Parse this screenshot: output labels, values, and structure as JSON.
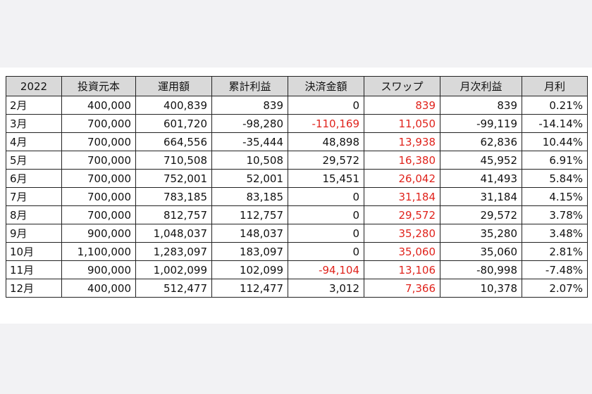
{
  "table": {
    "headers": [
      "2022",
      "投資元本",
      "運用額",
      "累計利益",
      "決済金額",
      "スワップ",
      "月次利益",
      "月利"
    ],
    "rows": [
      {
        "month": "2月",
        "principal": "400,000",
        "operating": "400,839",
        "cumulative": "839",
        "settlement": "0",
        "swap": "839",
        "monthly_profit": "839",
        "monthly_rate": "0.21%",
        "settlement_negative": false
      },
      {
        "month": "3月",
        "principal": "700,000",
        "operating": "601,720",
        "cumulative": "-98,280",
        "settlement": "-110,169",
        "swap": "11,050",
        "monthly_profit": "-99,119",
        "monthly_rate": "-14.14%",
        "settlement_negative": true
      },
      {
        "month": "4月",
        "principal": "700,000",
        "operating": "664,556",
        "cumulative": "-35,444",
        "settlement": "48,898",
        "swap": "13,938",
        "monthly_profit": "62,836",
        "monthly_rate": "10.44%",
        "settlement_negative": false
      },
      {
        "month": "5月",
        "principal": "700,000",
        "operating": "710,508",
        "cumulative": "10,508",
        "settlement": "29,572",
        "swap": "16,380",
        "monthly_profit": "45,952",
        "monthly_rate": "6.91%",
        "settlement_negative": false
      },
      {
        "month": "6月",
        "principal": "700,000",
        "operating": "752,001",
        "cumulative": "52,001",
        "settlement": "15,451",
        "swap": "26,042",
        "monthly_profit": "41,493",
        "monthly_rate": "5.84%",
        "settlement_negative": false
      },
      {
        "month": "7月",
        "principal": "700,000",
        "operating": "783,185",
        "cumulative": "83,185",
        "settlement": "0",
        "swap": "31,184",
        "monthly_profit": "31,184",
        "monthly_rate": "4.15%",
        "settlement_negative": false
      },
      {
        "month": "8月",
        "principal": "700,000",
        "operating": "812,757",
        "cumulative": "112,757",
        "settlement": "0",
        "swap": "29,572",
        "monthly_profit": "29,572",
        "monthly_rate": "3.78%",
        "settlement_negative": false
      },
      {
        "month": "9月",
        "principal": "900,000",
        "operating": "1,048,037",
        "cumulative": "148,037",
        "settlement": "0",
        "swap": "35,280",
        "monthly_profit": "35,280",
        "monthly_rate": "3.48%",
        "settlement_negative": false
      },
      {
        "month": "10月",
        "principal": "1,100,000",
        "operating": "1,283,097",
        "cumulative": "183,097",
        "settlement": "0",
        "swap": "35,060",
        "monthly_profit": "35,060",
        "monthly_rate": "2.81%",
        "settlement_negative": false
      },
      {
        "month": "11月",
        "principal": "900,000",
        "operating": "1,002,099",
        "cumulative": "102,099",
        "settlement": "-94,104",
        "swap": "13,106",
        "monthly_profit": "-80,998",
        "monthly_rate": "-7.48%",
        "settlement_negative": true
      },
      {
        "month": "12月",
        "principal": "400,000",
        "operating": "512,477",
        "cumulative": "112,477",
        "settlement": "3,012",
        "swap": "7,366",
        "monthly_profit": "10,378",
        "monthly_rate": "2.07%",
        "settlement_negative": false
      }
    ]
  },
  "colors": {
    "header_bg": "#d9d9d9",
    "negative_red": "#e0231c",
    "swap_red": "#e0231c",
    "page_bg": "#f2f2f4",
    "card_bg": "#ffffff"
  }
}
